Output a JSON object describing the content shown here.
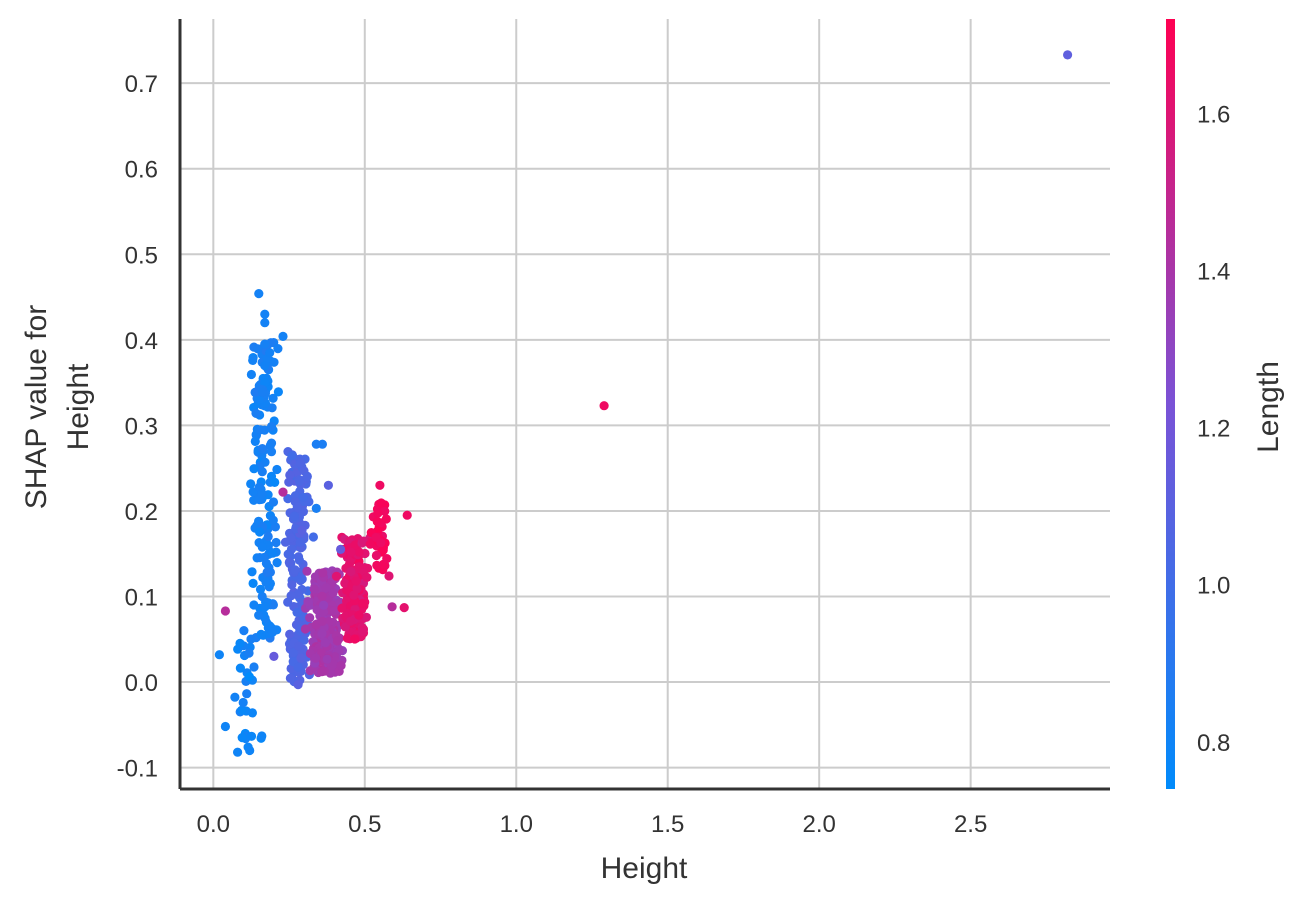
{
  "chart_data": {
    "type": "scatter",
    "title": "",
    "xlabel": "Height",
    "ylabel_lines": [
      "SHAP value for",
      "Height"
    ],
    "xlim": [
      -0.11,
      2.96
    ],
    "ylim": [
      -0.125,
      0.775
    ],
    "xticks": [
      0.0,
      0.5,
      1.0,
      1.5,
      2.0,
      2.5
    ],
    "xtick_labels": [
      "0.0",
      "0.5",
      "1.0",
      "1.5",
      "2.0",
      "2.5"
    ],
    "yticks": [
      -0.1,
      0.0,
      0.1,
      0.2,
      0.3,
      0.4,
      0.5,
      0.6,
      0.7
    ],
    "ytick_labels": [
      "-0.1",
      "0.0",
      "0.1",
      "0.2",
      "0.3",
      "0.4",
      "0.5",
      "0.6",
      "0.7"
    ],
    "grid": true,
    "colorbar": {
      "label": "Length",
      "range": [
        0.74,
        1.72
      ],
      "ticks": [
        0.8,
        1.0,
        1.2,
        1.4,
        1.6
      ],
      "tick_labels": [
        "0.8",
        "1.0",
        "1.2",
        "1.4",
        "1.6"
      ],
      "colors": [
        "#008bfb",
        "#7a52d6",
        "#ff0052"
      ]
    },
    "groups": [
      {
        "n": 160,
        "x_center": 0.17,
        "x_spread": 0.045,
        "y_min": 0.05,
        "y_max": 0.4,
        "color_value": 0.82
      },
      {
        "n": 28,
        "x_center": 0.11,
        "x_spread": 0.04,
        "y_min": -0.085,
        "y_max": 0.07,
        "color_value": 0.8
      },
      {
        "n": 170,
        "x_center": 0.28,
        "x_spread": 0.04,
        "y_min": 0.0,
        "y_max": 0.27,
        "color_value": 1.05
      },
      {
        "n": 230,
        "x_center": 0.37,
        "x_spread": 0.055,
        "y_min": 0.01,
        "y_max": 0.13,
        "color_value": 1.38
      },
      {
        "n": 170,
        "x_center": 0.47,
        "x_spread": 0.045,
        "y_min": 0.05,
        "y_max": 0.17,
        "color_value": 1.62
      },
      {
        "n": 40,
        "x_center": 0.55,
        "x_spread": 0.035,
        "y_min": 0.13,
        "y_max": 0.21,
        "color_value": 1.68
      }
    ],
    "points": [
      {
        "x": 2.82,
        "y": 0.733,
        "color_value": 1.12
      },
      {
        "x": 1.29,
        "y": 0.323,
        "color_value": 1.66
      },
      {
        "x": 0.04,
        "y": 0.083,
        "color_value": 1.45
      },
      {
        "x": 0.15,
        "y": 0.454,
        "color_value": 0.82
      },
      {
        "x": 0.17,
        "y": 0.43,
        "color_value": 0.82
      },
      {
        "x": 0.17,
        "y": 0.42,
        "color_value": 0.82
      },
      {
        "x": 0.23,
        "y": 0.404,
        "color_value": 0.82
      },
      {
        "x": 0.17,
        "y": 0.395,
        "color_value": 0.83
      },
      {
        "x": 0.13,
        "y": 0.376,
        "color_value": 0.82
      },
      {
        "x": 0.34,
        "y": 0.278,
        "color_value": 0.85
      },
      {
        "x": 0.36,
        "y": 0.278,
        "color_value": 0.85
      },
      {
        "x": 0.34,
        "y": 0.203,
        "color_value": 0.84
      },
      {
        "x": 0.02,
        "y": 0.032,
        "color_value": 0.8
      },
      {
        "x": 0.04,
        "y": -0.052,
        "color_value": 0.8
      },
      {
        "x": 0.08,
        "y": -0.082,
        "color_value": 0.8
      },
      {
        "x": 0.12,
        "y": -0.08,
        "color_value": 0.8
      },
      {
        "x": 0.16,
        "y": -0.063,
        "color_value": 0.8
      },
      {
        "x": 0.55,
        "y": 0.23,
        "color_value": 1.66
      },
      {
        "x": 0.63,
        "y": 0.087,
        "color_value": 1.62
      },
      {
        "x": 0.59,
        "y": 0.088,
        "color_value": 1.45
      },
      {
        "x": 0.28,
        "y": -0.003,
        "color_value": 1.1
      },
      {
        "x": 0.2,
        "y": 0.03,
        "color_value": 1.15
      },
      {
        "x": 0.42,
        "y": 0.155,
        "color_value": 1.15
      },
      {
        "x": 0.58,
        "y": 0.124,
        "color_value": 1.6
      },
      {
        "x": 0.64,
        "y": 0.195,
        "color_value": 1.66
      },
      {
        "x": 0.38,
        "y": 0.23,
        "color_value": 1.1
      },
      {
        "x": 0.31,
        "y": 0.24,
        "color_value": 1.05
      },
      {
        "x": 0.23,
        "y": 0.222,
        "color_value": 1.45
      }
    ]
  }
}
